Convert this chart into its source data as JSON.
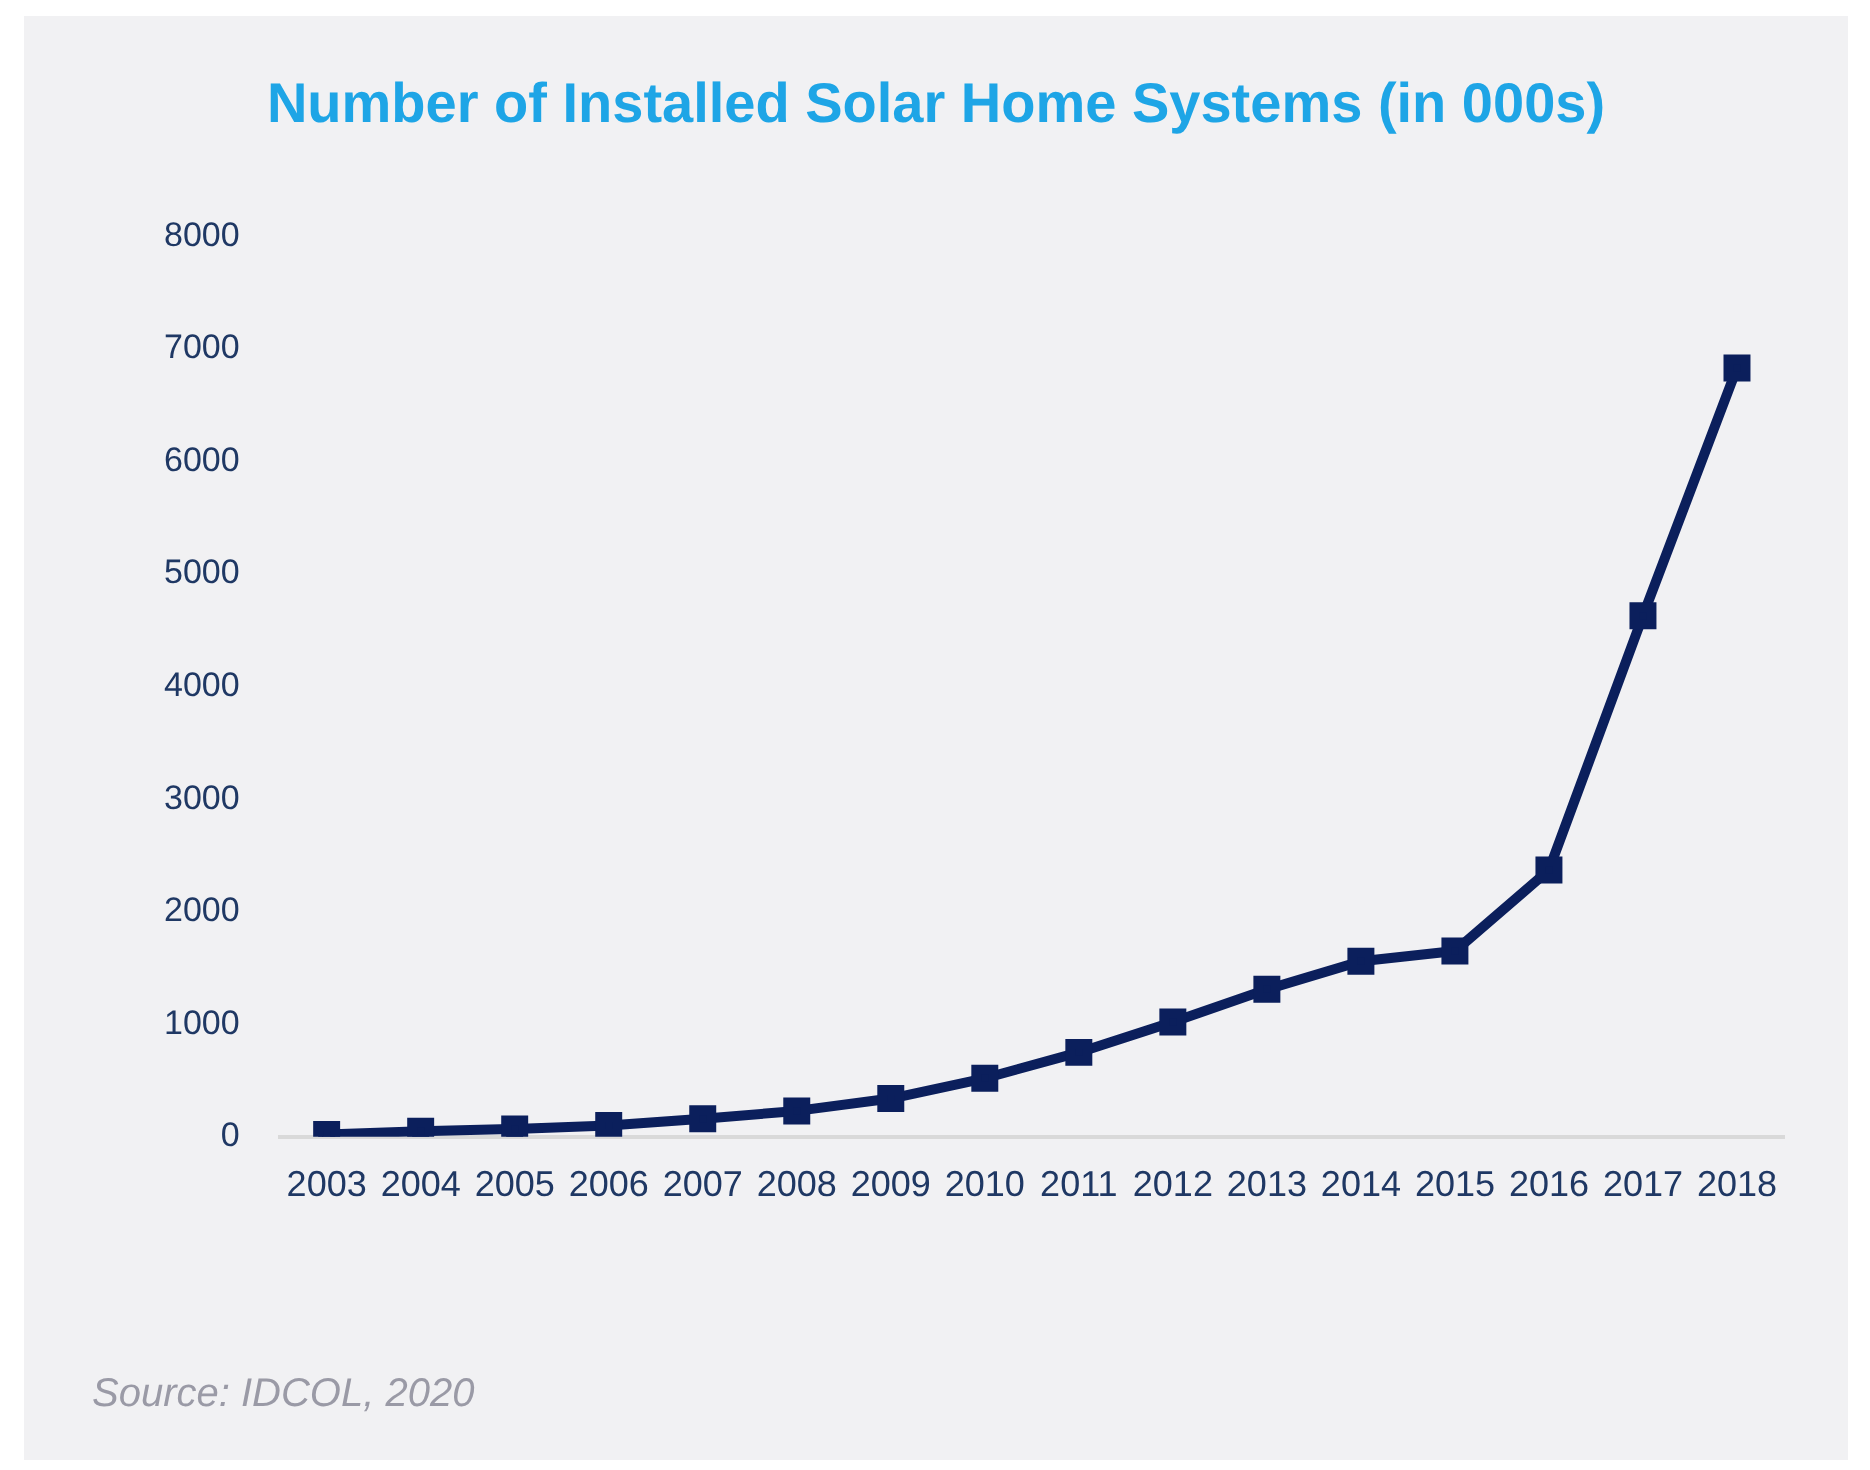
{
  "chart_data": {
    "type": "line",
    "title": "Number of Installed Solar Home Systems (in 000s)",
    "categories": [
      "2003",
      "2004",
      "2005",
      "2006",
      "2007",
      "2008",
      "2009",
      "2010",
      "2011",
      "2012",
      "2013",
      "2014",
      "2015",
      "2016",
      "2017",
      "2018"
    ],
    "series": [
      {
        "color": "#0b1f5c",
        "values": [
          20,
          50,
          70,
          100,
          160,
          230,
          340,
          520,
          750,
          1020,
          1310,
          1560,
          1650,
          2370,
          4630,
          6830
        ]
      }
    ],
    "ylim": [
      0,
      8000
    ],
    "yticks": [
      0,
      1000,
      2000,
      3000,
      4000,
      5000,
      6000,
      7000,
      8000
    ],
    "grid": false,
    "legend": false,
    "marker": "square",
    "line_style": "solid",
    "annotations": [
      "Source: IDCOL, 2020"
    ]
  }
}
